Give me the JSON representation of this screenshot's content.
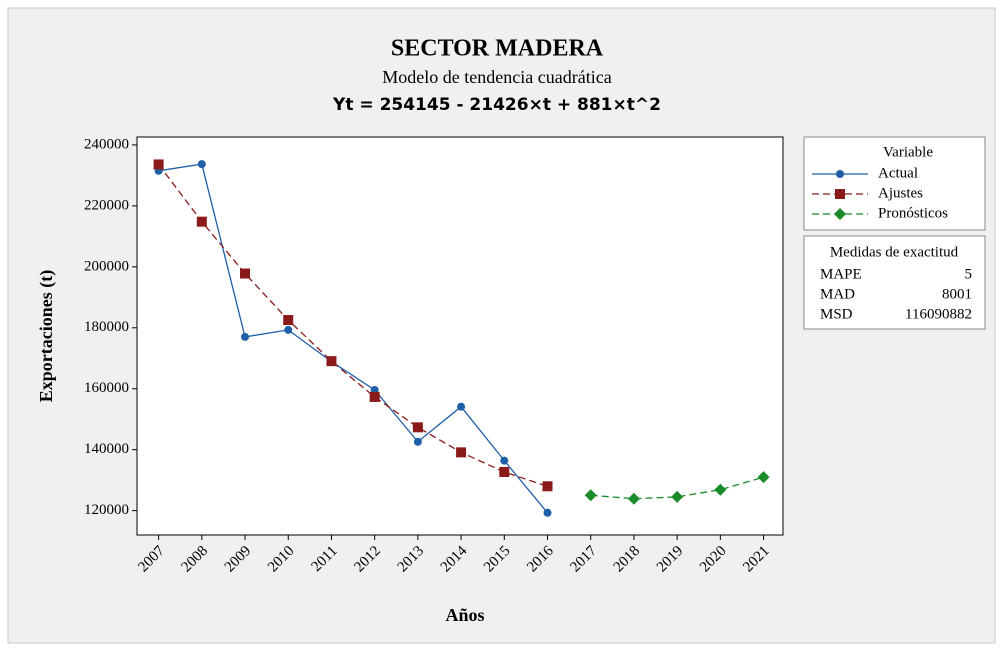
{
  "chart_data": {
    "type": "line",
    "title": "SECTOR MADERA",
    "subtitle": "Modelo de tendencia cuadrática",
    "equation": "Yt = 254145 - 21426×t + 881×t^2",
    "x_label": "Años",
    "y_label": "Exportaciones (t)",
    "x": [
      2007,
      2008,
      2009,
      2010,
      2011,
      2012,
      2013,
      2014,
      2015,
      2016,
      2017,
      2018,
      2019,
      2020,
      2021
    ],
    "xlim": [
      2006.5,
      2021.45
    ],
    "xticks": [
      2007,
      2008,
      2009,
      2010,
      2011,
      2012,
      2013,
      2014,
      2015,
      2016,
      2017,
      2018,
      2019,
      2020,
      2021
    ],
    "ylim": [
      112000,
      242600
    ],
    "yticks": [
      120000,
      140000,
      160000,
      180000,
      200000,
      220000,
      240000
    ],
    "legend_title": "Variable",
    "series": [
      {
        "name": "Actual",
        "color": "#1f5fa8",
        "linestyle": "solid",
        "marker": "circle",
        "values": [
          231500,
          233700,
          177000,
          179300,
          168900,
          159600,
          142600,
          154100,
          136400,
          119300,
          null,
          null,
          null,
          null,
          null
        ]
      },
      {
        "name": "Ajustes",
        "color": "#8b1a1a",
        "linestyle": "dashed",
        "marker": "square",
        "values": [
          233600,
          214817,
          197796,
          182537,
          169040,
          157305,
          147332,
          139121,
          132672,
          127985,
          null,
          null,
          null,
          null,
          null
        ]
      },
      {
        "name": "Pronósticos",
        "color": "#1a8a2a",
        "linestyle": "dashed",
        "marker": "diamond",
        "values": [
          null,
          null,
          null,
          null,
          null,
          null,
          null,
          null,
          null,
          null,
          125060,
          123897,
          124496,
          126857,
          130980
        ]
      }
    ],
    "accuracy": {
      "title": "Medidas de exactitud",
      "rows": [
        {
          "label": "MAPE",
          "value": 5
        },
        {
          "label": "MAD",
          "value": 8001
        },
        {
          "label": "MSD",
          "value": 116090882
        }
      ]
    }
  }
}
